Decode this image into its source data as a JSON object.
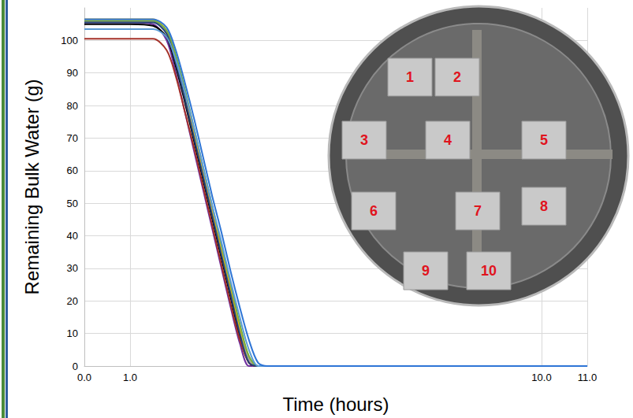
{
  "chart_data": {
    "type": "line",
    "xlabel": "Time (hours)",
    "ylabel": "Remaining Bulk Water (g)",
    "x": [
      0,
      0.5,
      1.0,
      1.5,
      1.8,
      2.0,
      2.2,
      2.4,
      2.6,
      2.8,
      3.0,
      3.2,
      3.4,
      3.6,
      3.8,
      4.0,
      5,
      6,
      7,
      8,
      9,
      10,
      11
    ],
    "series": [
      {
        "color": "#7030a0",
        "values": [
          105.5,
          105.5,
          105.5,
          105,
          100,
          90,
          78,
          66,
          54,
          42,
          30,
          18,
          7,
          0,
          0,
          0,
          0,
          0,
          0,
          0,
          0,
          0,
          0
        ]
      },
      {
        "color": "#000000",
        "values": [
          105,
          105,
          105,
          104.5,
          101,
          92,
          81,
          69,
          57,
          45,
          33,
          21,
          9,
          1,
          0,
          0,
          0,
          0,
          0,
          0,
          0,
          0,
          0
        ]
      },
      {
        "color": "#a5322a",
        "values": [
          100.5,
          100.5,
          100.5,
          100.5,
          97,
          89,
          78,
          67,
          55,
          43,
          31,
          19,
          8,
          1,
          0,
          0,
          0,
          0,
          0,
          0,
          0,
          0,
          0
        ]
      },
      {
        "color": "#ed7d31",
        "values": [
          106,
          106,
          106,
          106,
          103,
          95,
          84,
          72,
          60,
          48,
          36,
          24,
          12,
          2,
          0,
          0,
          0,
          0,
          0,
          0,
          0,
          0,
          0
        ]
      },
      {
        "color": "#a5a5a5",
        "values": [
          106,
          106,
          106,
          106,
          102.5,
          94,
          83,
          71,
          59,
          47,
          35,
          23,
          11,
          2,
          0,
          0,
          0,
          0,
          0,
          0,
          0,
          0,
          0
        ]
      },
      {
        "color": "#ffc000",
        "values": [
          106.5,
          106.5,
          106.5,
          106.5,
          103,
          95,
          84,
          72,
          60,
          48,
          36,
          24,
          12,
          3,
          0,
          0,
          0,
          0,
          0,
          0,
          0,
          0,
          0
        ]
      },
      {
        "color": "#70ad47",
        "values": [
          106,
          106,
          106,
          106,
          103,
          95.5,
          85,
          73,
          61,
          49,
          37,
          25,
          13,
          3,
          0,
          0,
          0,
          0,
          0,
          0,
          0,
          0,
          0
        ]
      },
      {
        "color": "#264478",
        "values": [
          105.5,
          105.5,
          105.5,
          105.5,
          102,
          93,
          82,
          70,
          58,
          46,
          34,
          22,
          10,
          1,
          0,
          0,
          0,
          0,
          0,
          0,
          0,
          0,
          0
        ]
      },
      {
        "color": "#5b9bd5",
        "values": [
          103.5,
          103.5,
          103.5,
          103.5,
          101,
          94,
          84,
          73,
          61,
          49,
          38,
          26,
          15,
          5,
          0,
          0,
          0,
          0,
          0,
          0,
          0,
          0,
          0
        ]
      },
      {
        "color": "#2e75d6",
        "values": [
          106.5,
          106.5,
          106.5,
          106.5,
          104,
          97,
          87,
          76,
          64,
          52,
          41,
          29,
          18,
          8,
          1,
          0,
          0,
          0,
          0,
          0,
          0,
          0,
          0
        ]
      }
    ],
    "xlim": [
      0,
      11
    ],
    "xticks": [
      {
        "value": 0,
        "label": "0.0"
      },
      {
        "value": 1,
        "label": "1.0"
      },
      {
        "value": 10,
        "label": "10.0"
      },
      {
        "value": 11,
        "label": "11.0"
      }
    ],
    "ylim": [
      0,
      110
    ],
    "yticks": [
      0,
      10,
      20,
      30,
      40,
      50,
      60,
      70,
      80,
      90,
      100
    ],
    "grid": true,
    "annotations": [
      "1",
      "2",
      "3",
      "4",
      "5",
      "6",
      "7",
      "8",
      "9",
      "10"
    ]
  }
}
